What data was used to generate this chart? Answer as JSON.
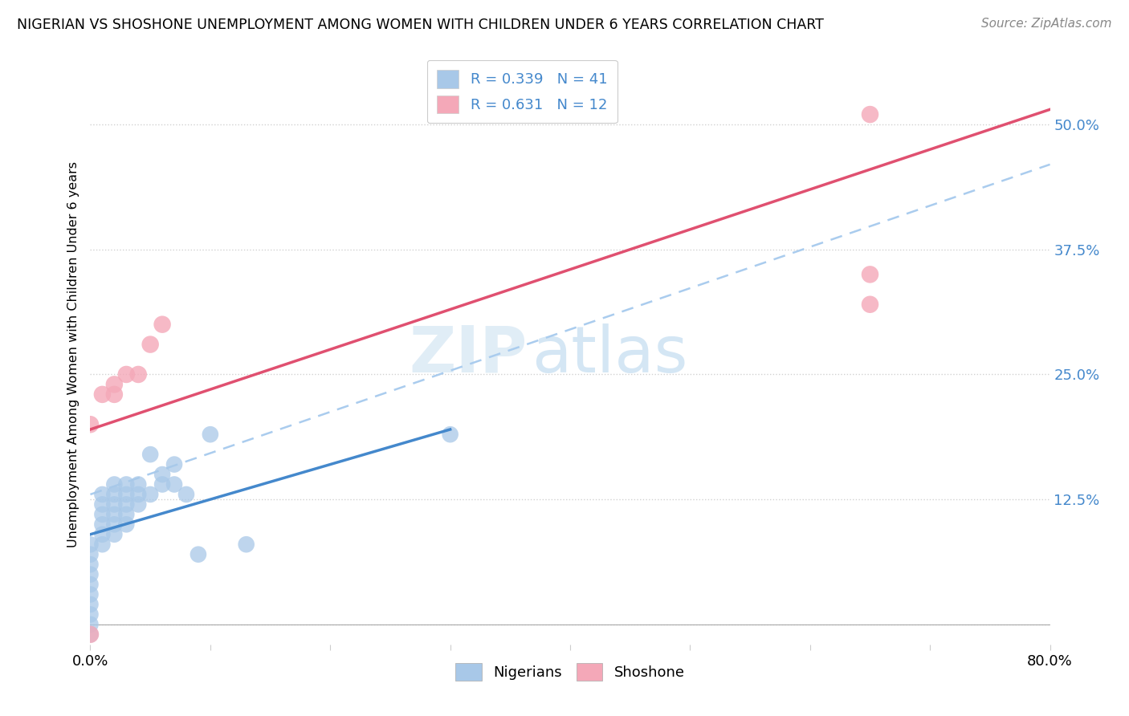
{
  "title": "NIGERIAN VS SHOSHONE UNEMPLOYMENT AMONG WOMEN WITH CHILDREN UNDER 6 YEARS CORRELATION CHART",
  "source": "Source: ZipAtlas.com",
  "ylabel": "Unemployment Among Women with Children Under 6 years",
  "r_nigerian": 0.339,
  "n_nigerian": 41,
  "r_shoshone": 0.631,
  "n_shoshone": 12,
  "xlim": [
    0.0,
    0.8
  ],
  "ylim": [
    -0.02,
    0.56
  ],
  "yticks": [
    0.0,
    0.125,
    0.25,
    0.375,
    0.5
  ],
  "ytick_labels": [
    "",
    "12.5%",
    "25.0%",
    "37.5%",
    "50.0%"
  ],
  "xticks": [
    0.0,
    0.1,
    0.2,
    0.3,
    0.4,
    0.5,
    0.6,
    0.7,
    0.8
  ],
  "xtick_labels": [
    "0.0%",
    "",
    "",
    "",
    "",
    "",
    "",
    "",
    "80.0%"
  ],
  "nigerian_color": "#a8c8e8",
  "shoshone_color": "#f4a8b8",
  "nigerian_line_color": "#4488cc",
  "shoshone_line_color": "#e05070",
  "dashed_line_color": "#aaccee",
  "background_color": "#ffffff",
  "nigerian_x": [
    0.0,
    0.0,
    0.0,
    0.0,
    0.0,
    0.0,
    0.0,
    0.0,
    0.0,
    0.0,
    0.01,
    0.01,
    0.01,
    0.01,
    0.01,
    0.01,
    0.02,
    0.02,
    0.02,
    0.02,
    0.02,
    0.02,
    0.03,
    0.03,
    0.03,
    0.03,
    0.03,
    0.04,
    0.04,
    0.04,
    0.05,
    0.05,
    0.06,
    0.06,
    0.07,
    0.07,
    0.08,
    0.09,
    0.1,
    0.13,
    0.3
  ],
  "nigerian_y": [
    0.0,
    0.01,
    0.02,
    0.03,
    0.04,
    0.05,
    0.06,
    0.07,
    0.08,
    -0.01,
    0.08,
    0.09,
    0.1,
    0.11,
    0.12,
    0.13,
    0.09,
    0.1,
    0.11,
    0.12,
    0.13,
    0.14,
    0.1,
    0.11,
    0.12,
    0.13,
    0.14,
    0.12,
    0.13,
    0.14,
    0.13,
    0.17,
    0.14,
    0.15,
    0.14,
    0.16,
    0.13,
    0.07,
    0.19,
    0.08,
    0.19
  ],
  "shoshone_x": [
    0.0,
    0.0,
    0.01,
    0.02,
    0.02,
    0.03,
    0.04,
    0.05,
    0.06,
    0.65,
    0.65,
    0.65
  ],
  "shoshone_y": [
    -0.01,
    0.2,
    0.23,
    0.23,
    0.24,
    0.25,
    0.25,
    0.28,
    0.3,
    0.32,
    0.51,
    0.35
  ],
  "nig_line_x": [
    0.0,
    0.3
  ],
  "nig_line_y": [
    0.09,
    0.195
  ],
  "sho_line_x": [
    0.0,
    0.8
  ],
  "sho_line_y": [
    0.195,
    0.515
  ],
  "dash_line_x": [
    0.0,
    0.8
  ],
  "dash_line_y": [
    0.13,
    0.46
  ]
}
